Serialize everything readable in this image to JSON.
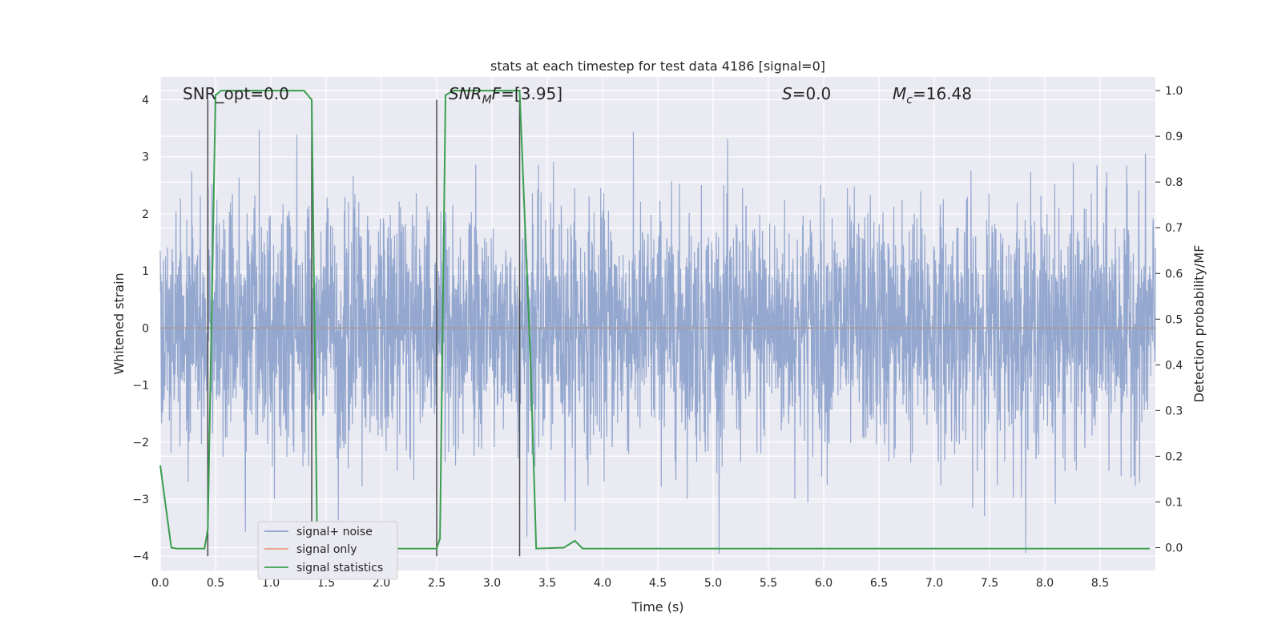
{
  "chart_data": {
    "type": "line",
    "title": "stats at each timestep for test data 4186 [signal=0]",
    "xlabel": "Time (s)",
    "ylabel_left": "Whitened strain",
    "ylabel_right": "Detection probability/MF",
    "xlim": [
      0.0,
      9.0
    ],
    "ylim_left": [
      -4.25,
      4.4
    ],
    "ylim_right": [
      -0.05,
      1.03
    ],
    "xticks": [
      "0.0",
      "0.5",
      "1.0",
      "1.5",
      "2.0",
      "2.5",
      "3.0",
      "3.5",
      "4.0",
      "4.5",
      "5.0",
      "5.5",
      "6.0",
      "6.5",
      "7.0",
      "7.5",
      "8.0",
      "8.5"
    ],
    "yticks_left": [
      "−4",
      "−3",
      "−2",
      "−1",
      "0",
      "1",
      "2",
      "3",
      "4"
    ],
    "yticks_right": [
      "0.0",
      "0.1",
      "0.2",
      "0.3",
      "0.4",
      "0.5",
      "0.6",
      "0.7",
      "0.8",
      "0.9",
      "1.0"
    ],
    "grid": true,
    "legend_position": "lower-left",
    "annotations": {
      "snr_opt": "SNR_opt=0.0",
      "snr_mf_name": "SNR",
      "snr_mf_sub": "M",
      "snr_mf_name2": "F",
      "snr_mf_value": "=[3.95]",
      "s_name": "S",
      "s_value": "=0.0",
      "mc_name": "M",
      "mc_sub": "c",
      "mc_value": "=16.48"
    },
    "series": [
      {
        "name": "signal+ noise",
        "color": "#8fa3cc",
        "axis": "left",
        "description_amplitude": "white noise roughly within ±2, occasional spikes to ±4"
      },
      {
        "name": "signal only",
        "color": "#e8a07a",
        "axis": "left",
        "values_zero": true
      },
      {
        "name": "signal statistics",
        "color": "#3a9e4f",
        "axis": "right",
        "points": [
          [
            0.0,
            0.18
          ],
          [
            0.1,
            0.0
          ],
          [
            0.15,
            -0.002
          ],
          [
            0.4,
            -0.002
          ],
          [
            0.43,
            0.04
          ],
          [
            0.5,
            0.99
          ],
          [
            0.55,
            1.0
          ],
          [
            1.3,
            1.0
          ],
          [
            1.37,
            0.98
          ],
          [
            1.42,
            0.0
          ],
          [
            1.5,
            -0.002
          ],
          [
            2.5,
            -0.002
          ],
          [
            2.53,
            0.02
          ],
          [
            2.58,
            0.99
          ],
          [
            2.65,
            1.0
          ],
          [
            3.25,
            1.0
          ],
          [
            3.35,
            0.4
          ],
          [
            3.4,
            -0.002
          ],
          [
            3.65,
            0.0
          ],
          [
            3.75,
            0.015
          ],
          [
            3.82,
            -0.002
          ],
          [
            8.95,
            -0.002
          ]
        ]
      }
    ],
    "vertical_markers": [
      {
        "x": 0.43,
        "y0": -4.0,
        "y1": 4.0
      },
      {
        "x": 1.37,
        "y0": -4.0,
        "y1": 4.0
      },
      {
        "x": 2.5,
        "y0": -4.0,
        "y1": 4.0
      },
      {
        "x": 3.25,
        "y0": -4.0,
        "y1": 4.0
      }
    ],
    "colors": {
      "plot_background": "#eaeaf2",
      "grid": "#ffffff",
      "marker_line": "#4a4a4a"
    }
  }
}
